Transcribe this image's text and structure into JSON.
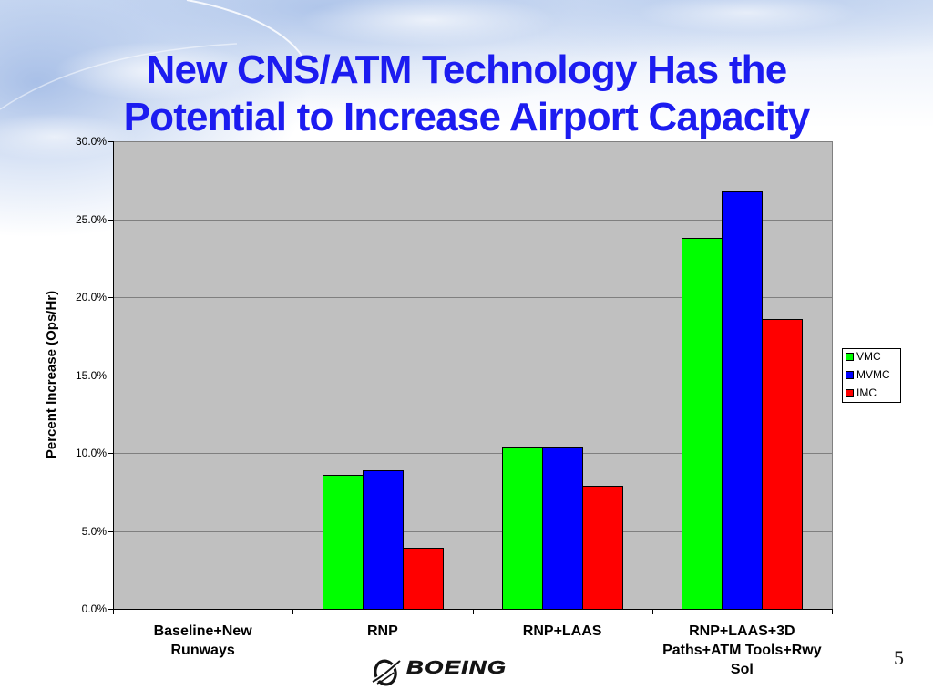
{
  "slide": {
    "title_lines": [
      "New CNS/ATM Technology Has the",
      "Potential to Increase Airport Capacity"
    ],
    "title_color": "#1c1cf0",
    "page_number": "5"
  },
  "logo": {
    "icon": "boeing-symbol-icon",
    "wordmark": "BOEING"
  },
  "chart_data": {
    "type": "bar",
    "categories": [
      "Baseline+New Runways",
      "RNP",
      "RNP+LAAS",
      "RNP+LAAS+3D Paths+ATM Tools+Rwy Sol"
    ],
    "series": [
      {
        "name": "VMC",
        "color": "#00ff00",
        "values": [
          0,
          8.6,
          10.4,
          23.8
        ]
      },
      {
        "name": "MVMC",
        "color": "#0000ff",
        "values": [
          0,
          8.9,
          10.4,
          26.8
        ]
      },
      {
        "name": "IMC",
        "color": "#ff0000",
        "values": [
          0,
          3.9,
          7.9,
          18.6
        ]
      }
    ],
    "ylabel": "Percent Increase (Ops/Hr)",
    "ylim": [
      0,
      30
    ],
    "yticks": [
      0,
      5,
      10,
      15,
      20,
      25,
      30
    ],
    "yticklabels": [
      "0.0%",
      "5.0%",
      "10.0%",
      "15.0%",
      "20.0%",
      "25.0%",
      "30.0%"
    ],
    "grid": true,
    "legend_position": "right",
    "plot_background": "#c0c0c0"
  }
}
